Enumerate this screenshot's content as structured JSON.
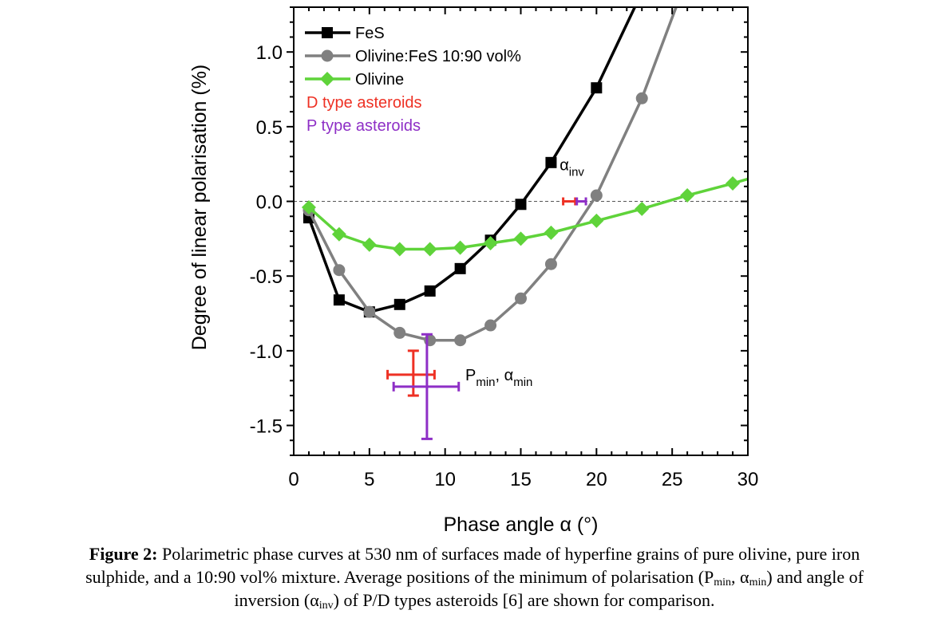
{
  "chart_data": {
    "type": "line",
    "title": "",
    "xlabel": "Phase angle α (°)",
    "ylabel": "Degree of linear polarisation (%)",
    "xlim": [
      0,
      30
    ],
    "ylim": [
      -1.7,
      1.3
    ],
    "x_ticks": [
      0,
      5,
      10,
      15,
      20,
      25,
      30
    ],
    "x_tick_labels": [
      "0",
      "5",
      "10",
      "15",
      "20",
      "25",
      "30"
    ],
    "y_ticks": [
      1.0,
      0.5,
      0.0,
      -0.5,
      -1.0,
      -1.5
    ],
    "y_tick_labels": [
      "1.0",
      "0.5",
      "0.0",
      "-0.5",
      "-1.0",
      "-1.5"
    ],
    "grid": false,
    "zero_line": "dashed",
    "legend_position": "top-left",
    "series": [
      {
        "name": "FeS",
        "color": "#000000",
        "marker": "square",
        "x": [
          1,
          3,
          5,
          7,
          9,
          11,
          13,
          15,
          17,
          20,
          23
        ],
        "y": [
          -0.11,
          -0.66,
          -0.74,
          -0.69,
          -0.6,
          -0.45,
          -0.26,
          -0.02,
          0.26,
          0.76,
          1.4
        ]
      },
      {
        "name": "Olivine:FeS 10:90 vol%",
        "color": "#808080",
        "marker": "circle",
        "x": [
          1,
          3,
          5,
          7,
          9,
          11,
          13,
          15,
          17,
          20,
          23,
          26
        ],
        "y": [
          -0.06,
          -0.46,
          -0.74,
          -0.88,
          -0.93,
          -0.93,
          -0.83,
          -0.65,
          -0.42,
          0.04,
          0.69,
          1.5
        ]
      },
      {
        "name": "Olivine",
        "color": "#5fd33a",
        "marker": "diamond",
        "x": [
          1,
          3,
          5,
          7,
          9,
          11,
          13,
          15,
          17,
          20,
          23,
          26,
          29,
          31
        ],
        "y": [
          -0.04,
          -0.22,
          -0.29,
          -0.32,
          -0.32,
          -0.31,
          -0.28,
          -0.25,
          -0.21,
          -0.13,
          -0.05,
          0.04,
          0.12,
          0.18
        ]
      }
    ],
    "asteroid_markers": [
      {
        "name": "D type asteroids",
        "color": "#ee3124",
        "alpha_min": 7.9,
        "alpha_min_err": [
          6.2,
          9.3
        ],
        "p_min": -1.16,
        "p_min_err": [
          -1.3,
          -1.0
        ],
        "alpha_inv": 18.2,
        "alpha_inv_err": [
          17.8,
          18.6
        ]
      },
      {
        "name": "P type asteroids",
        "color": "#8e2fc6",
        "alpha_min": 8.8,
        "alpha_min_err": [
          6.6,
          10.9
        ],
        "p_min": -1.24,
        "p_min_err": [
          -1.59,
          -0.89
        ],
        "alpha_inv": 19.0,
        "alpha_inv_err": [
          18.7,
          19.3
        ]
      }
    ],
    "annotations": [
      {
        "text": "α",
        "sub": "inv",
        "x": 18.2,
        "y": 0.14
      },
      {
        "text": "P",
        "sub": "min",
        "text2": ", α",
        "sub2": "min",
        "x": 11.1,
        "y": -1.16
      }
    ]
  },
  "caption": {
    "label": "Figure 2:",
    "line1": " Polarimetric phase curves at 530 nm of surfaces made of hyperfine grains of pure olivine, pure iron",
    "line2a": "sulphide, and a 10:90 vol% mixture. Average positions of the minimum of polarisation (P",
    "line2_sub1": "min",
    "line2b": ", α",
    "line2_sub2": "min",
    "line2c": ") and angle of",
    "line3a": "inversion (α",
    "line3_sub": "inv",
    "line3b": ") of P/D types asteroids [6] are shown for comparison."
  }
}
